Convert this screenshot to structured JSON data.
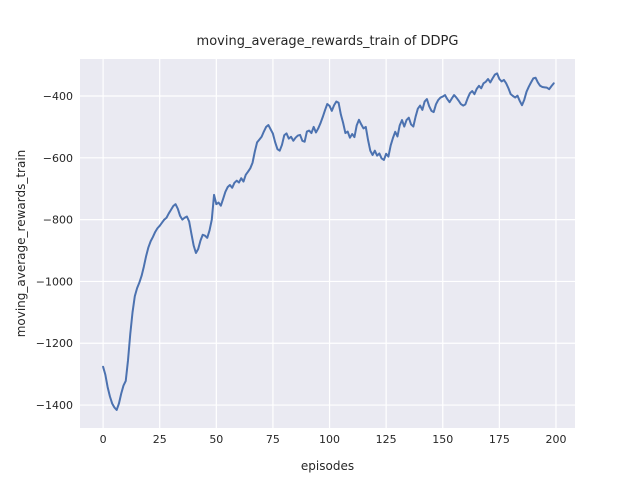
{
  "figure": {
    "title": "moving_average_rewards_train of DDPG",
    "xlabel": "episodes",
    "ylabel": "moving_average_rewards_train"
  },
  "chart_data": {
    "type": "line",
    "title": "moving_average_rewards_train of DDPG",
    "xlabel": "episodes",
    "ylabel": "moving_average_rewards_train",
    "legend": null,
    "grid": true,
    "style": "seaborn-darkgrid",
    "line_color": "#4c72b0",
    "axes_bg_color": "#eaeaf2",
    "grid_color": "#ffffff",
    "text_color": "#262626",
    "x_start": 0,
    "x_step": 1,
    "xticks": [
      0,
      25,
      50,
      75,
      100,
      125,
      150,
      175,
      200
    ],
    "yticks": [
      -1400,
      -1200,
      -1000,
      -800,
      -600,
      -400
    ],
    "xlim": [
      -10.2,
      208.4
    ],
    "ylim": [
      -1474.3,
      -280.3
    ],
    "values": [
      -1276,
      -1302,
      -1342,
      -1372,
      -1395,
      -1408,
      -1416,
      -1395,
      -1363,
      -1337,
      -1322,
      -1255,
      -1170,
      -1100,
      -1048,
      -1022,
      -1004,
      -982,
      -952,
      -918,
      -890,
      -870,
      -856,
      -840,
      -828,
      -820,
      -810,
      -800,
      -794,
      -780,
      -768,
      -756,
      -750,
      -765,
      -788,
      -800,
      -794,
      -790,
      -806,
      -846,
      -884,
      -908,
      -895,
      -868,
      -849,
      -852,
      -859,
      -835,
      -800,
      -720,
      -750,
      -745,
      -755,
      -733,
      -710,
      -695,
      -688,
      -697,
      -681,
      -674,
      -680,
      -666,
      -677,
      -655,
      -645,
      -634,
      -616,
      -580,
      -550,
      -541,
      -532,
      -515,
      -500,
      -494,
      -508,
      -522,
      -550,
      -572,
      -577,
      -558,
      -527,
      -521,
      -538,
      -532,
      -545,
      -535,
      -528,
      -526,
      -545,
      -548,
      -515,
      -512,
      -520,
      -500,
      -518,
      -505,
      -488,
      -468,
      -446,
      -426,
      -432,
      -448,
      -430,
      -418,
      -422,
      -460,
      -487,
      -520,
      -515,
      -535,
      -523,
      -533,
      -495,
      -477,
      -492,
      -505,
      -500,
      -542,
      -577,
      -591,
      -577,
      -593,
      -586,
      -602,
      -607,
      -587,
      -596,
      -560,
      -536,
      -516,
      -531,
      -495,
      -478,
      -499,
      -478,
      -470,
      -492,
      -499,
      -467,
      -441,
      -431,
      -445,
      -418,
      -410,
      -433,
      -448,
      -452,
      -427,
      -413,
      -405,
      -402,
      -397,
      -410,
      -420,
      -408,
      -397,
      -405,
      -415,
      -426,
      -431,
      -427,
      -407,
      -391,
      -384,
      -394,
      -377,
      -367,
      -375,
      -359,
      -354,
      -345,
      -356,
      -343,
      -331,
      -327,
      -345,
      -353,
      -348,
      -359,
      -375,
      -394,
      -400,
      -405,
      -399,
      -416,
      -430,
      -412,
      -386,
      -370,
      -356,
      -343,
      -341,
      -356,
      -367,
      -371,
      -372,
      -373,
      -378,
      -368,
      -359
    ]
  }
}
